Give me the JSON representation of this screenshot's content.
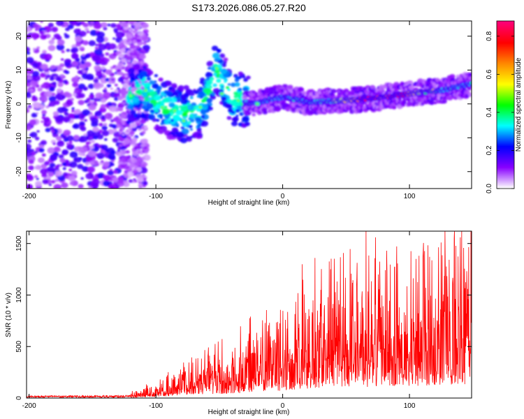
{
  "title": "S173.2026.086.05.27.R20",
  "chart_data": [
    {
      "type": "heatmap",
      "name": "spectrogram",
      "title": "S173.2026.086.05.27.R20",
      "xlabel": "Height of straight line (km)",
      "ylabel": "Frequency (Hz)",
      "xlim": [
        -202,
        149
      ],
      "ylim": [
        -25,
        24.5
      ],
      "xticks": [
        -200,
        -100,
        0,
        100
      ],
      "yticks": [
        -20,
        -10,
        0,
        10,
        20
      ],
      "colorbar": {
        "label": "Normalized spectral amplitude",
        "range": [
          0.0,
          0.88
        ],
        "ticks": [
          0.0,
          0.2,
          0.4,
          0.6,
          0.8
        ],
        "colors": [
          "#ffffff",
          "#8800ff",
          "#0000ff",
          "#00ffff",
          "#00ff00",
          "#ffff00",
          "#ff8800",
          "#ff0000",
          "#ff0077"
        ]
      },
      "ridge": {
        "description_points": [
          {
            "x": -122,
            "y": 2
          },
          {
            "x": -110,
            "y": 4
          },
          {
            "x": -95,
            "y": -1
          },
          {
            "x": -80,
            "y": -3
          },
          {
            "x": -65,
            "y": -2
          },
          {
            "x": -52,
            "y": 10
          },
          {
            "x": -40,
            "y": 2
          },
          {
            "x": -25,
            "y": 0
          },
          {
            "x": 0,
            "y": 2
          },
          {
            "x": 20,
            "y": 0.5
          },
          {
            "x": 50,
            "y": 1
          },
          {
            "x": 75,
            "y": 1.8
          },
          {
            "x": 100,
            "y": 3
          },
          {
            "x": 125,
            "y": 4
          },
          {
            "x": 149,
            "y": 6
          }
        ],
        "peak_amplitude_near": [
          {
            "x": 68,
            "y": 1.8
          },
          {
            "x": 90,
            "y": 3
          }
        ]
      }
    },
    {
      "type": "line",
      "name": "snr",
      "title": "",
      "xlabel": "Height of straight line (km)",
      "ylabel": "SNR (10 * v/v)",
      "xlim": [
        -202,
        149
      ],
      "ylim": [
        0,
        1620
      ],
      "xticks": [
        -200,
        -100,
        0,
        100
      ],
      "yticks": [
        0,
        500,
        1000,
        1500
      ],
      "color": "#ff0000",
      "envelope": [
        {
          "x": -202,
          "y": 20
        },
        {
          "x": -120,
          "y": 25
        },
        {
          "x": -100,
          "y": 90
        },
        {
          "x": -80,
          "y": 180
        },
        {
          "x": -60,
          "y": 250
        },
        {
          "x": -40,
          "y": 280
        },
        {
          "x": -20,
          "y": 400
        },
        {
          "x": 0,
          "y": 480
        },
        {
          "x": 20,
          "y": 600
        },
        {
          "x": 40,
          "y": 700
        },
        {
          "x": 60,
          "y": 700
        },
        {
          "x": 80,
          "y": 740
        },
        {
          "x": 100,
          "y": 760
        },
        {
          "x": 120,
          "y": 820
        },
        {
          "x": 149,
          "y": 840
        }
      ],
      "peaks": [
        {
          "x": 30,
          "y": 1050
        },
        {
          "x": 82,
          "y": 1430
        },
        {
          "x": 125,
          "y": 1510
        },
        {
          "x": 128,
          "y": 1620
        },
        {
          "x": 140,
          "y": 1560
        }
      ]
    }
  ]
}
